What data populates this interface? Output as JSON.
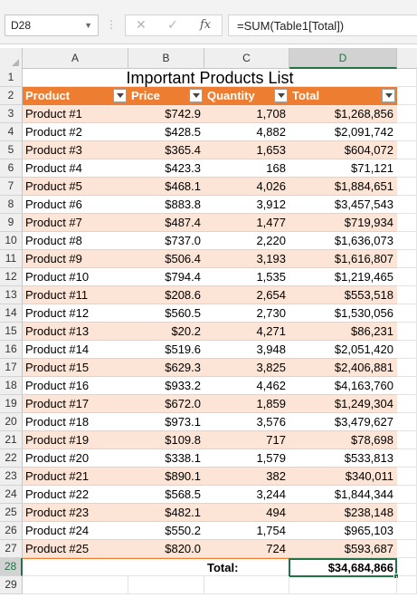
{
  "name_box": {
    "value": "D28",
    "icon": "chevron-down-icon"
  },
  "formula_bar": {
    "cancel_icon": "✕",
    "enter_icon": "✓",
    "fx_label": "fx",
    "formula": "=SUM(Table1[Total])"
  },
  "columns": [
    "A",
    "B",
    "C",
    "D"
  ],
  "title": "Important Products List",
  "table_headers": {
    "product": "Product",
    "price": "Price",
    "quantity": "Quantity",
    "total": "Total"
  },
  "rows": [
    {
      "num": "3",
      "product": "Product #1",
      "price": "$742.9",
      "quantity": "1,708",
      "total": "$1,268,856"
    },
    {
      "num": "4",
      "product": "Product #2",
      "price": "$428.5",
      "quantity": "4,882",
      "total": "$2,091,742"
    },
    {
      "num": "5",
      "product": "Product #3",
      "price": "$365.4",
      "quantity": "1,653",
      "total": "$604,072"
    },
    {
      "num": "6",
      "product": "Product #4",
      "price": "$423.3",
      "quantity": "168",
      "total": "$71,121"
    },
    {
      "num": "7",
      "product": "Product #5",
      "price": "$468.1",
      "quantity": "4,026",
      "total": "$1,884,651"
    },
    {
      "num": "8",
      "product": "Product #6",
      "price": "$883.8",
      "quantity": "3,912",
      "total": "$3,457,543"
    },
    {
      "num": "9",
      "product": "Product #7",
      "price": "$487.4",
      "quantity": "1,477",
      "total": "$719,934"
    },
    {
      "num": "10",
      "product": "Product #8",
      "price": "$737.0",
      "quantity": "2,220",
      "total": "$1,636,073"
    },
    {
      "num": "11",
      "product": "Product #9",
      "price": "$506.4",
      "quantity": "3,193",
      "total": "$1,616,807"
    },
    {
      "num": "12",
      "product": "Product #10",
      "price": "$794.4",
      "quantity": "1,535",
      "total": "$1,219,465"
    },
    {
      "num": "13",
      "product": "Product #11",
      "price": "$208.6",
      "quantity": "2,654",
      "total": "$553,518"
    },
    {
      "num": "14",
      "product": "Product #12",
      "price": "$560.5",
      "quantity": "2,730",
      "total": "$1,530,056"
    },
    {
      "num": "15",
      "product": "Product #13",
      "price": "$20.2",
      "quantity": "4,271",
      "total": "$86,231"
    },
    {
      "num": "16",
      "product": "Product #14",
      "price": "$519.6",
      "quantity": "3,948",
      "total": "$2,051,420"
    },
    {
      "num": "17",
      "product": "Product #15",
      "price": "$629.3",
      "quantity": "3,825",
      "total": "$2,406,881"
    },
    {
      "num": "18",
      "product": "Product #16",
      "price": "$933.2",
      "quantity": "4,462",
      "total": "$4,163,760"
    },
    {
      "num": "19",
      "product": "Product #17",
      "price": "$672.0",
      "quantity": "1,859",
      "total": "$1,249,304"
    },
    {
      "num": "20",
      "product": "Product #18",
      "price": "$973.1",
      "quantity": "3,576",
      "total": "$3,479,627"
    },
    {
      "num": "21",
      "product": "Product #19",
      "price": "$109.8",
      "quantity": "717",
      "total": "$78,698"
    },
    {
      "num": "22",
      "product": "Product #20",
      "price": "$338.1",
      "quantity": "1,579",
      "total": "$533,813"
    },
    {
      "num": "23",
      "product": "Product #21",
      "price": "$890.1",
      "quantity": "382",
      "total": "$340,011"
    },
    {
      "num": "24",
      "product": "Product #22",
      "price": "$568.5",
      "quantity": "3,244",
      "total": "$1,844,344"
    },
    {
      "num": "25",
      "product": "Product #23",
      "price": "$482.1",
      "quantity": "494",
      "total": "$238,148"
    },
    {
      "num": "26",
      "product": "Product #24",
      "price": "$550.2",
      "quantity": "1,754",
      "total": "$965,103"
    },
    {
      "num": "27",
      "product": "Product #25",
      "price": "$820.0",
      "quantity": "724",
      "total": "$593,687"
    }
  ],
  "total_row": {
    "num": "28",
    "label": "Total:",
    "value": "$34,684,866"
  },
  "row_labels": {
    "title_row": "1",
    "header_row": "2",
    "empty_row": "29"
  },
  "colors": {
    "accent": "#217346",
    "table_header": "#ed7d31",
    "band": "#fce4d6"
  }
}
